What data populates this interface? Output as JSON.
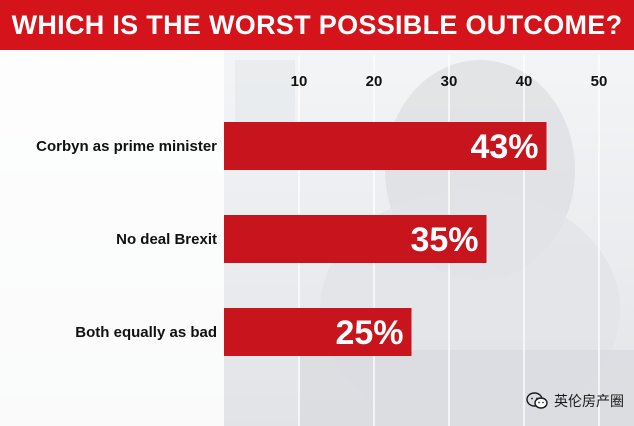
{
  "chart_data": {
    "type": "bar",
    "orientation": "horizontal",
    "title": "WHICH IS THE WORST POSSIBLE OUTCOME?",
    "categories": [
      "Corbyn as prime minister",
      "No deal Brexit",
      "Both equally as bad"
    ],
    "values": [
      43,
      35,
      25
    ],
    "value_labels": [
      "43%",
      "35%",
      "25%"
    ],
    "x_ticks": [
      10,
      20,
      30,
      40,
      50
    ],
    "x_tick_labels": [
      "10",
      "20",
      "30",
      "40",
      "50"
    ],
    "xlim": [
      0,
      50
    ],
    "grid": true,
    "bar_color": "#c8141c",
    "accent_color": "#d4131b"
  },
  "watermark": {
    "text": "英伦房产圈",
    "icon": "wechat-icon"
  }
}
